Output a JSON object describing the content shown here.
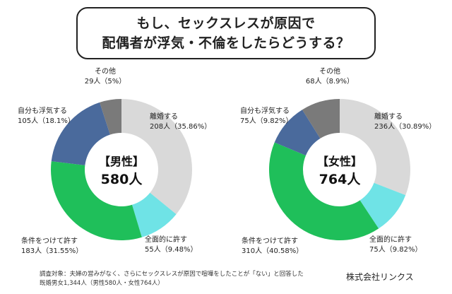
{
  "title": {
    "line1": "もし、セックスレスが原因で",
    "line2": "配偶者が浮気・不倫をしたらどうする？"
  },
  "footnote": {
    "line1": "調査対象：夫婦の営みがなく、さらにセックスレスが原因で喧嘩をしたことが「ない」と回答した",
    "line2": "既婚男女1,344人（男性580人・女性764人）"
  },
  "company": "株式会社リンクス",
  "colors": {
    "divorce": "#d9d9d9",
    "forgive_all": "#6fe3e6",
    "forgive_cond": "#1fbf5a",
    "cheat_too": "#4a6a9c",
    "other": "#7a7a7a"
  },
  "chart_data": [
    {
      "type": "pie",
      "center": {
        "line1": "【男性】",
        "line2": "580人"
      },
      "slices": [
        {
          "key": "divorce",
          "name": "離婚する",
          "count": "208人",
          "pct_label": "（35.86%）",
          "value": 35.86
        },
        {
          "key": "forgive_all",
          "name": "全面的に許す",
          "count": "55人",
          "pct_label": "（9.48%）",
          "value": 9.48
        },
        {
          "key": "forgive_cond",
          "name": "条件をつけて許す",
          "count": "183人",
          "pct_label": "（31.55%）",
          "value": 31.55
        },
        {
          "key": "cheat_too",
          "name": "自分も浮気する",
          "count": "105人",
          "pct_label": "（18.1%）",
          "value": 18.1
        },
        {
          "key": "other",
          "name": "その他",
          "count": "29人",
          "pct_label": "（5%）",
          "value": 5.0
        }
      ]
    },
    {
      "type": "pie",
      "center": {
        "line1": "【女性】",
        "line2": "764人"
      },
      "slices": [
        {
          "key": "divorce",
          "name": "離婚する",
          "count": "236人",
          "pct_label": "（30.89%）",
          "value": 30.89
        },
        {
          "key": "forgive_all",
          "name": "全面的に許す",
          "count": "75人",
          "pct_label": "（9.82%）",
          "value": 9.82
        },
        {
          "key": "forgive_cond",
          "name": "条件をつけて許す",
          "count": "310人",
          "pct_label": "（40.58%）",
          "value": 40.58
        },
        {
          "key": "cheat_too",
          "name": "自分も浮気する",
          "count": "75人",
          "pct_label": "（9.82%）",
          "value": 9.82
        },
        {
          "key": "other",
          "name": "その他",
          "count": "68人",
          "pct_label": "（8.9%）",
          "value": 8.9
        }
      ]
    }
  ]
}
